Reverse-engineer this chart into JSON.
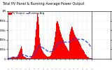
{
  "title": "Total PV Panel & Running Average Power Output",
  "title_fontsize": 3.5,
  "background_color": "#ffffff",
  "bar_color": "#ff0000",
  "avg_line_color": "#1a44ff",
  "grid_color": "#bbbbbb",
  "bar_heights": [
    0.01,
    0.01,
    0.01,
    0.01,
    0.02,
    0.03,
    0.04,
    0.05,
    0.04,
    0.04,
    0.03,
    0.03,
    0.03,
    0.04,
    0.05,
    0.07,
    0.1,
    0.14,
    0.18,
    0.22,
    0.26,
    0.2,
    0.14,
    0.09,
    0.06,
    0.05,
    0.04,
    0.03,
    0.02,
    0.02,
    0.02,
    0.02,
    0.02,
    0.02,
    0.02,
    0.03,
    0.04,
    0.06,
    0.09,
    0.13,
    0.18,
    0.28,
    0.45,
    0.62,
    0.78,
    0.95,
    0.88,
    0.72,
    0.58,
    0.44,
    0.33,
    0.26,
    0.2,
    0.17,
    0.14,
    0.12,
    0.1,
    0.09,
    0.08,
    0.06,
    0.05,
    0.04,
    0.04,
    0.04,
    0.05,
    0.06,
    0.08,
    0.12,
    0.16,
    0.22,
    0.28,
    0.36,
    0.46,
    0.57,
    0.67,
    0.75,
    0.8,
    0.78,
    0.73,
    0.67,
    0.61,
    0.56,
    0.51,
    0.46,
    0.42,
    0.39,
    0.36,
    0.34,
    0.31,
    0.28,
    0.26,
    0.23,
    0.2,
    0.18,
    0.16,
    0.52,
    0.58,
    0.63,
    0.68,
    0.66,
    0.63,
    0.6,
    0.56,
    0.52,
    0.49,
    0.46,
    0.44,
    0.41,
    0.39,
    0.37,
    0.34,
    0.31,
    0.28,
    0.26,
    0.23,
    0.21,
    0.19,
    0.17,
    0.14,
    0.11,
    0.09,
    0.07,
    0.05,
    0.04,
    0.03,
    0.02,
    0.02,
    0.01,
    0.01,
    0.01
  ],
  "avg_values": [
    0.01,
    0.01,
    0.01,
    0.01,
    0.02,
    0.02,
    0.02,
    0.03,
    0.03,
    0.03,
    0.03,
    0.03,
    0.03,
    0.03,
    0.03,
    0.04,
    0.05,
    0.06,
    0.07,
    0.08,
    0.09,
    0.09,
    0.09,
    0.09,
    0.08,
    0.08,
    0.07,
    0.07,
    0.06,
    0.06,
    0.05,
    0.05,
    0.05,
    0.05,
    0.05,
    0.05,
    0.05,
    0.05,
    0.06,
    0.07,
    0.08,
    0.09,
    0.12,
    0.15,
    0.18,
    0.22,
    0.24,
    0.26,
    0.27,
    0.27,
    0.27,
    0.26,
    0.25,
    0.24,
    0.23,
    0.22,
    0.21,
    0.2,
    0.19,
    0.18,
    0.17,
    0.16,
    0.16,
    0.15,
    0.15,
    0.15,
    0.15,
    0.15,
    0.16,
    0.17,
    0.18,
    0.2,
    0.22,
    0.24,
    0.26,
    0.28,
    0.3,
    0.32,
    0.33,
    0.34,
    0.35,
    0.35,
    0.35,
    0.35,
    0.35,
    0.35,
    0.35,
    0.35,
    0.35,
    0.35,
    0.35,
    0.35,
    0.35,
    0.35,
    0.35,
    0.36,
    0.37,
    0.38,
    0.39,
    0.4,
    0.4,
    0.41,
    0.41,
    0.41,
    0.41,
    0.41,
    0.41,
    0.41,
    0.41,
    0.41,
    0.41,
    0.41,
    0.41,
    0.41,
    0.41,
    0.41,
    0.4,
    0.4,
    0.39,
    0.38,
    0.37,
    0.36,
    0.35,
    0.34,
    0.33,
    0.31,
    0.29,
    0.27,
    0.25,
    0.23
  ],
  "ylim": [
    0,
    1.0
  ],
  "ytick_positions": [
    0.0,
    0.2,
    0.4,
    0.6,
    0.8,
    1.0
  ],
  "ytick_labels_left": [
    "0",
    "200k",
    "400k",
    "600k",
    "800k",
    "1M"
  ],
  "ytick_labels_right": [
    "0",
    "200k",
    "400k",
    "600k",
    "800k",
    "1M"
  ],
  "legend_bar_label": "PV Output",
  "legend_line_label": "Running Avg"
}
